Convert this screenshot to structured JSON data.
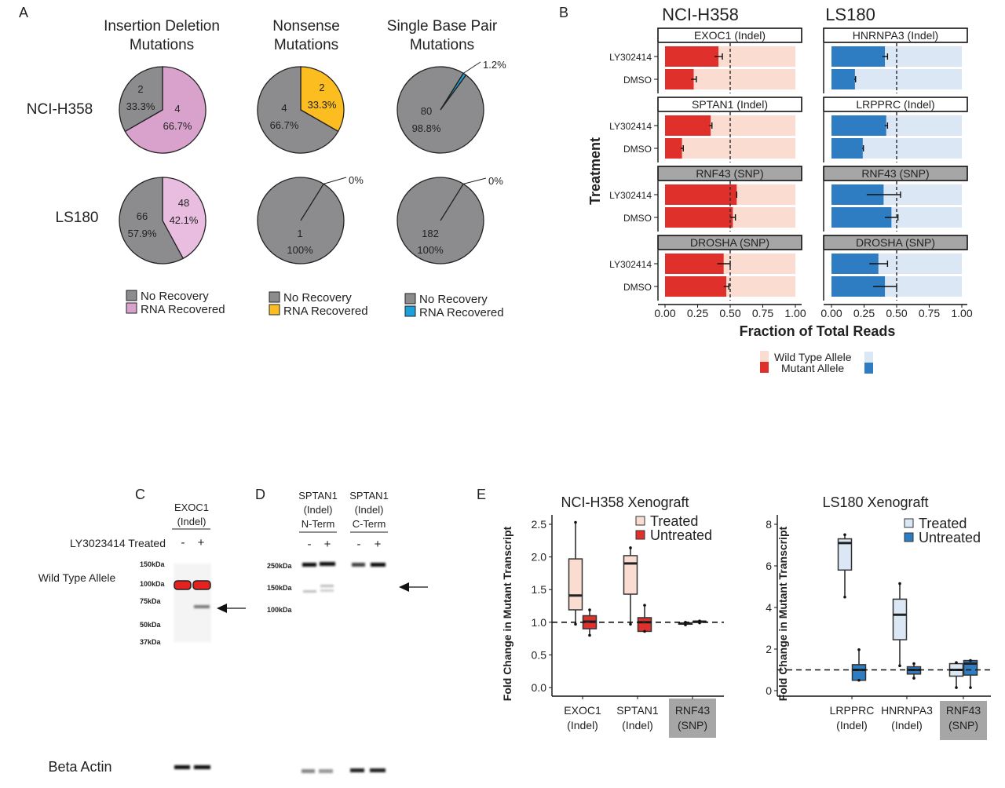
{
  "panel_labels": {
    "a": "A",
    "b": "B",
    "c": "C",
    "d": "D",
    "e": "E"
  },
  "panel_a": {
    "column_titles": [
      [
        "Insertion Deletion",
        "Mutations"
      ],
      [
        "Nonsense",
        "Mutations"
      ],
      [
        "Single Base Pair",
        "Mutations"
      ]
    ],
    "row_labels": [
      "NCI-H358",
      "LS180"
    ],
    "legends": [
      {
        "no_recovery": "No Recovery",
        "rna_recovered": "RNA Recovered",
        "color": "#d9a2cd"
      },
      {
        "no_recovery": "No Recovery",
        "rna_recovered": "RNA Recovered",
        "color": "#fbbd1f"
      },
      {
        "no_recovery": "No Recovery",
        "rna_recovered": "RNA Recovered",
        "color": "#1da0da"
      }
    ],
    "gray": "#8c8c8e"
  },
  "panel_b": {
    "cell_lines": [
      "NCI-H358",
      "LS180"
    ],
    "ylabel": "Treatment",
    "xlabel": "Fraction of Total Reads",
    "ticks": [
      "0.00",
      "0.25",
      "0.50",
      "0.75",
      "1.00"
    ],
    "legend": {
      "wild_type": "Wild Type Allele",
      "mutant": "Mutant Allele"
    }
  },
  "panel_c": {
    "header": [
      "EXOC1",
      "(Indel)"
    ],
    "treatment_label": "LY3023414 Treated",
    "lanes": [
      "-",
      "+"
    ],
    "row_label_top": "Wild Type Allele",
    "row_label_bottom": "Beta Actin",
    "markers": [
      "150kDa",
      "100kDa",
      "75kDa",
      "50kDa",
      "37kDa"
    ]
  },
  "panel_d": {
    "headers": [
      [
        "SPTAN1",
        "(Indel)",
        "N-Term"
      ],
      [
        "SPTAN1",
        "(Indel)",
        "C-Term"
      ]
    ],
    "lanes": [
      "-",
      "+",
      "-",
      "+"
    ],
    "markers": [
      "250kDa",
      "150kDa",
      "100kDa"
    ]
  },
  "chart_data": [
    {
      "type": "pie",
      "cell_line": "NCI-H358",
      "title": "Insertion Deletion Mutations",
      "slices": [
        {
          "label": "RNA Recovered",
          "count": "4",
          "percent": "66.7%",
          "value": 66.7,
          "color": "#d9a2cd"
        },
        {
          "label": "No Recovery",
          "count": "2",
          "percent": "33.3%",
          "value": 33.3,
          "color": "#8c8c8e"
        }
      ]
    },
    {
      "type": "pie",
      "cell_line": "NCI-H358",
      "title": "Nonsense Mutations",
      "slices": [
        {
          "label": "RNA Recovered",
          "count": "2",
          "percent": "33.3%",
          "value": 33.3,
          "color": "#fbbd1f"
        },
        {
          "label": "No Recovery",
          "count": "4",
          "percent": "66.7%",
          "value": 66.7,
          "color": "#8c8c8e"
        }
      ]
    },
    {
      "type": "pie",
      "cell_line": "NCI-H358",
      "title": "Single Base Pair Mutations",
      "slices": [
        {
          "label": "RNA Recovered",
          "count": "",
          "percent": "1.2%",
          "value": 1.2,
          "color": "#1da0da"
        },
        {
          "label": "No Recovery",
          "count": "80",
          "percent": "98.8%",
          "value": 98.8,
          "color": "#8c8c8e"
        }
      ]
    },
    {
      "type": "pie",
      "cell_line": "LS180",
      "title": "Insertion Deletion Mutations",
      "slices": [
        {
          "label": "RNA Recovered",
          "count": "48",
          "percent": "42.1%",
          "value": 42.1,
          "color": "#e8bde0"
        },
        {
          "label": "No Recovery",
          "count": "66",
          "percent": "57.9%",
          "value": 57.9,
          "color": "#8c8c8e"
        }
      ]
    },
    {
      "type": "pie",
      "cell_line": "LS180",
      "title": "Nonsense Mutations",
      "slices": [
        {
          "label": "RNA Recovered",
          "count": "",
          "percent": "0%",
          "value": 0,
          "color": "#fbbd1f"
        },
        {
          "label": "No Recovery",
          "count": "1",
          "percent": "100%",
          "value": 100,
          "color": "#8c8c8e"
        }
      ]
    },
    {
      "type": "pie",
      "cell_line": "LS180",
      "title": "Single Base Pair Mutations",
      "slices": [
        {
          "label": "RNA Recovered",
          "count": "",
          "percent": "0%",
          "value": 0,
          "color": "#1da0da"
        },
        {
          "label": "No Recovery",
          "count": "182",
          "percent": "100%",
          "value": 100,
          "color": "#8c8c8e"
        }
      ]
    },
    {
      "type": "bar",
      "stacked": true,
      "cell_line": "NCI-H358",
      "xlabel": "Fraction of Total Reads",
      "ylabel": "Treatment",
      "xlim": [
        0,
        1
      ],
      "reference_line": 0.5,
      "colors": {
        "mutant": "#e0302b",
        "wild_type": "#fbdcd0"
      },
      "facets": [
        {
          "name": "EXOC1 (Indel)",
          "type": "Indel",
          "rows": [
            {
              "treatment": "LY302414",
              "mutant": 0.41,
              "err": 0.03
            },
            {
              "treatment": "DMSO",
              "mutant": 0.22,
              "err": 0.02
            }
          ]
        },
        {
          "name": "SPTAN1 (Indel)",
          "type": "Indel",
          "rows": [
            {
              "treatment": "LY302414",
              "mutant": 0.35,
              "err": 0.01
            },
            {
              "treatment": "DMSO",
              "mutant": 0.13,
              "err": 0.01
            }
          ]
        },
        {
          "name": "RNF43 (SNP)",
          "type": "SNP",
          "rows": [
            {
              "treatment": "LY302414",
              "mutant": 0.55,
              "err": 0.0
            },
            {
              "treatment": "DMSO",
              "mutant": 0.52,
              "err": 0.02
            }
          ]
        },
        {
          "name": "DROSHA (SNP)",
          "type": "SNP",
          "rows": [
            {
              "treatment": "LY302414",
              "mutant": 0.45,
              "err": 0.05
            },
            {
              "treatment": "DMSO",
              "mutant": 0.47,
              "err": 0.02
            }
          ]
        }
      ]
    },
    {
      "type": "bar",
      "stacked": true,
      "cell_line": "LS180",
      "xlabel": "Fraction of Total Reads",
      "ylabel": "Treatment",
      "xlim": [
        0,
        1
      ],
      "reference_line": 0.5,
      "colors": {
        "mutant": "#2e7dc2",
        "wild_type": "#dce7f5"
      },
      "facets": [
        {
          "name": "HNRNPA3 (Indel)",
          "type": "Indel",
          "rows": [
            {
              "treatment": "LY302414",
              "mutant": 0.41,
              "err": 0.02
            },
            {
              "treatment": "DMSO",
              "mutant": 0.18,
              "err": 0.005
            }
          ]
        },
        {
          "name": "LRPPRC (Indel)",
          "type": "Indel",
          "rows": [
            {
              "treatment": "LY302414",
              "mutant": 0.42,
              "err": 0.01
            },
            {
              "treatment": "DMSO",
              "mutant": 0.24,
              "err": 0.005
            }
          ]
        },
        {
          "name": "RNF43 (SNP)",
          "type": "SNP",
          "rows": [
            {
              "treatment": "LY302414",
              "mutant": 0.4,
              "err": 0.13
            },
            {
              "treatment": "DMSO",
              "mutant": 0.46,
              "err": 0.05
            }
          ]
        },
        {
          "name": "DROSHA (SNP)",
          "type": "SNP",
          "rows": [
            {
              "treatment": "LY302414",
              "mutant": 0.36,
              "err": 0.07
            },
            {
              "treatment": "DMSO",
              "mutant": 0.41,
              "err": 0.09
            }
          ]
        }
      ]
    },
    {
      "type": "box",
      "title": "NCI-H358 Xenograft",
      "ylabel": "Fold Change in Mutant Transcript",
      "ylim": [
        0,
        2.5
      ],
      "yticks": [
        "0.0",
        "0.5",
        "1.0",
        "1.5",
        "2.0",
        "2.5"
      ],
      "reference_line": 1.0,
      "legend": [
        {
          "name": "Treated",
          "color": "#fbdcd0"
        },
        {
          "name": "Untreated",
          "color": "#e0302b"
        }
      ],
      "categories": [
        [
          "EXOC1",
          "(Indel)"
        ],
        [
          "SPTAN1",
          "(Indel)"
        ],
        [
          "RNF43",
          "(SNP)"
        ]
      ],
      "series": [
        {
          "name": "Treated",
          "boxes": [
            [
              0.97,
              1.19,
              1.41,
              1.97,
              2.53
            ],
            [
              0.97,
              1.43,
              1.9,
              2.02,
              2.14
            ],
            [
              0.96,
              0.97,
              0.98,
              0.99,
              1.0
            ]
          ]
        },
        {
          "name": "Untreated",
          "boxes": [
            [
              0.8,
              0.9,
              1.01,
              1.1,
              1.19
            ],
            [
              0.86,
              0.86,
              1.0,
              1.07,
              1.26
            ],
            [
              0.99,
              1.0,
              1.01,
              1.01,
              1.02
            ]
          ]
        }
      ]
    },
    {
      "type": "box",
      "title": "LS180 Xenograft",
      "ylabel": "Fold Change in Mutant Transcript",
      "ylim": [
        0,
        8
      ],
      "yticks": [
        "0",
        "2",
        "4",
        "6",
        "8"
      ],
      "reference_line": 1.0,
      "legend": [
        {
          "name": "Treated",
          "color": "#dce7f5"
        },
        {
          "name": "Untreated",
          "color": "#2e7dc2"
        }
      ],
      "categories": [
        [
          "LRPPRC",
          "(Indel)"
        ],
        [
          "HNRNPA3",
          "(Indel)"
        ],
        [
          "RNF43",
          "(SNP)"
        ]
      ],
      "series": [
        {
          "name": "Treated",
          "boxes": [
            [
              4.5,
              5.8,
              7.1,
              7.3,
              7.5
            ],
            [
              1.2,
              2.45,
              3.65,
              4.4,
              5.15
            ],
            [
              0.15,
              0.7,
              1.0,
              1.3,
              1.35
            ]
          ]
        },
        {
          "name": "Untreated",
          "boxes": [
            [
              0.5,
              0.5,
              1.0,
              1.25,
              1.97
            ],
            [
              0.6,
              0.8,
              1.0,
              1.15,
              1.3
            ],
            [
              0.15,
              0.75,
              1.3,
              1.45,
              1.45
            ]
          ]
        }
      ]
    }
  ]
}
